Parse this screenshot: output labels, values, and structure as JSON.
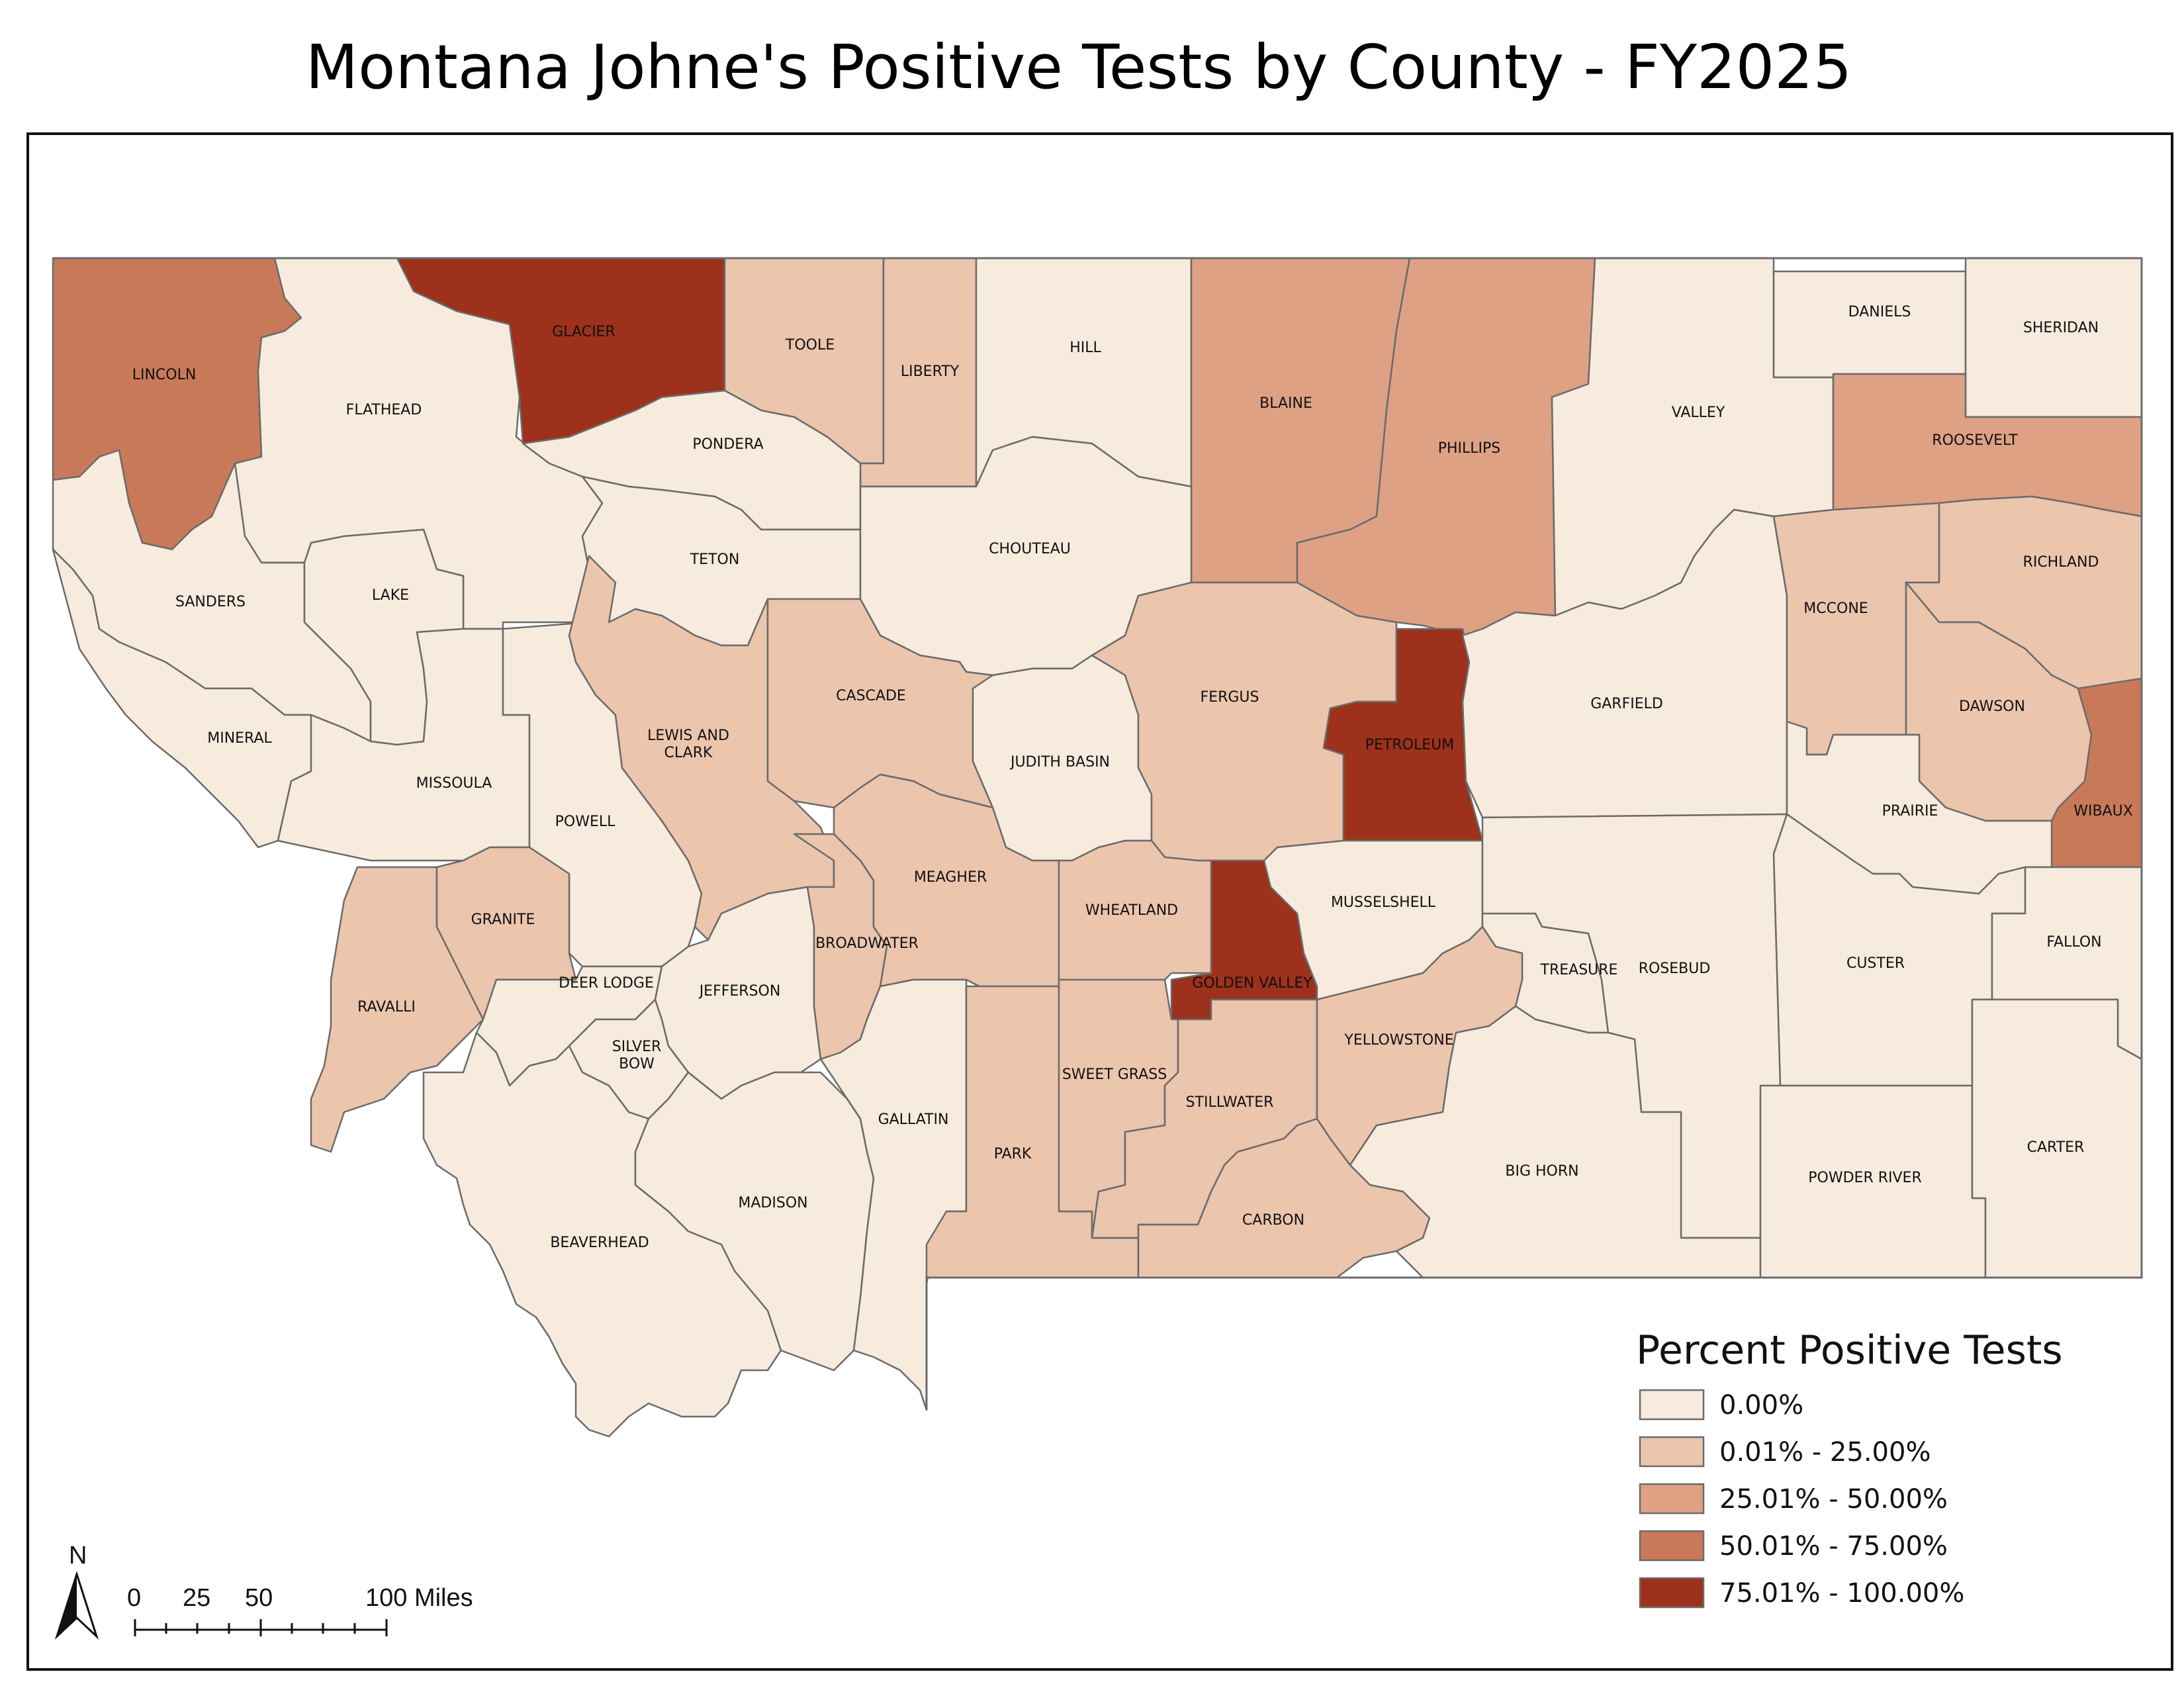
{
  "title": "Montana Johne's Positive Tests by County - FY2025",
  "legend": {
    "title": "Percent Positive Tests",
    "classes": [
      {
        "label": "0.00%",
        "color": "#f7ebde"
      },
      {
        "label": "0.01% - 25.00%",
        "color": "#ecc5ad"
      },
      {
        "label": "25.01% - 50.00%",
        "color": "#dea184"
      },
      {
        "label": "50.01% - 75.00%",
        "color": "#c87a58"
      },
      {
        "label": "75.01% - 100.00%",
        "color": "#9d311b"
      }
    ]
  },
  "counties": [
    {
      "name": "LINCOLN",
      "class": 3
    },
    {
      "name": "FLATHEAD",
      "class": 0
    },
    {
      "name": "GLACIER",
      "class": 4
    },
    {
      "name": "TOOLE",
      "class": 1
    },
    {
      "name": "LIBERTY",
      "class": 1
    },
    {
      "name": "HILL",
      "class": 0
    },
    {
      "name": "BLAINE",
      "class": 2
    },
    {
      "name": "PHILLIPS",
      "class": 2
    },
    {
      "name": "VALLEY",
      "class": 0
    },
    {
      "name": "DANIELS",
      "class": 0
    },
    {
      "name": "SHERIDAN",
      "class": 0
    },
    {
      "name": "ROOSEVELT",
      "class": 2
    },
    {
      "name": "SANDERS",
      "class": 0
    },
    {
      "name": "LAKE",
      "class": 0
    },
    {
      "name": "PONDERA",
      "class": 0
    },
    {
      "name": "TETON",
      "class": 0
    },
    {
      "name": "CHOUTEAU",
      "class": 0
    },
    {
      "name": "MINERAL",
      "class": 0
    },
    {
      "name": "MISSOULA",
      "class": 0
    },
    {
      "name": "POWELL",
      "class": 0
    },
    {
      "name": "LEWIS AND CLARK",
      "class": 1
    },
    {
      "name": "CASCADE",
      "class": 1
    },
    {
      "name": "JUDITH BASIN",
      "class": 0
    },
    {
      "name": "FERGUS",
      "class": 1
    },
    {
      "name": "PETROLEUM",
      "class": 4
    },
    {
      "name": "GARFIELD",
      "class": 0
    },
    {
      "name": "MCCONE",
      "class": 1
    },
    {
      "name": "RICHLAND",
      "class": 1
    },
    {
      "name": "DAWSON",
      "class": 1
    },
    {
      "name": "WIBAUX",
      "class": 3
    },
    {
      "name": "PRAIRIE",
      "class": 0
    },
    {
      "name": "RAVALLI",
      "class": 1
    },
    {
      "name": "GRANITE",
      "class": 1
    },
    {
      "name": "DEER LODGE",
      "class": 0
    },
    {
      "name": "SILVER BOW",
      "class": 0
    },
    {
      "name": "JEFFERSON",
      "class": 0
    },
    {
      "name": "BROADWATER",
      "class": 1
    },
    {
      "name": "MEAGHER",
      "class": 1
    },
    {
      "name": "WHEATLAND",
      "class": 1
    },
    {
      "name": "GOLDEN VALLEY",
      "class": 4
    },
    {
      "name": "MUSSELSHELL",
      "class": 0
    },
    {
      "name": "TREASURE",
      "class": 0
    },
    {
      "name": "ROSEBUD",
      "class": 0
    },
    {
      "name": "CUSTER",
      "class": 0
    },
    {
      "name": "FALLON",
      "class": 0
    },
    {
      "name": "BEAVERHEAD",
      "class": 0
    },
    {
      "name": "MADISON",
      "class": 0
    },
    {
      "name": "GALLATIN",
      "class": 0
    },
    {
      "name": "PARK",
      "class": 1
    },
    {
      "name": "SWEET GRASS",
      "class": 1
    },
    {
      "name": "STILLWATER",
      "class": 1
    },
    {
      "name": "CARBON",
      "class": 1
    },
    {
      "name": "YELLOWSTONE",
      "class": 1
    },
    {
      "name": "BIG HORN",
      "class": 0
    },
    {
      "name": "POWDER RIVER",
      "class": 0
    },
    {
      "name": "CARTER",
      "class": 0
    }
  ],
  "scale_bar": {
    "labels": [
      "0",
      "25",
      "50",
      "100 Miles"
    ]
  },
  "north_arrow": {
    "label": "N",
    "icon": "north-arrow-icon"
  }
}
